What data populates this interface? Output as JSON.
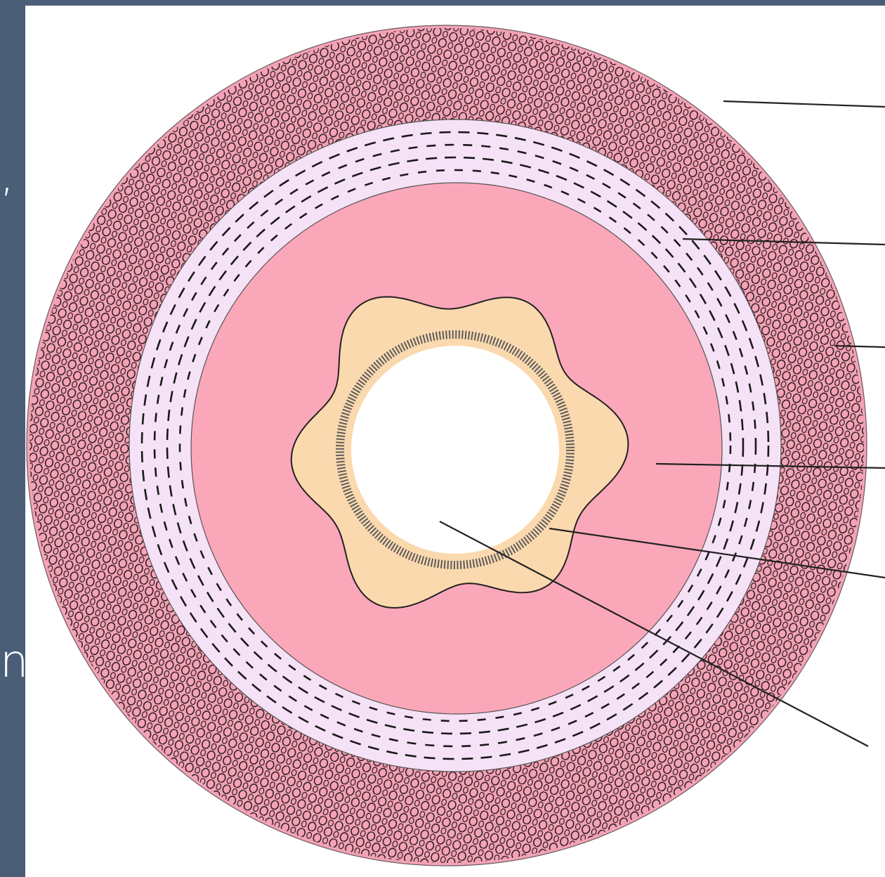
{
  "colors": {
    "slide_background": "#4b5e78",
    "canvas": "#ffffff",
    "outer_muscle": "#f4a3b7",
    "outer_muscle_cells": "#2a1a1e",
    "submucosa_ring": "#f6e2f6",
    "submucosa_dashes": "#1a1a1a",
    "mucosa_layer": "#fba7ba",
    "epithelium": "#fbd9ae",
    "villi": "#5c5c5c",
    "lumen": "#ffffff",
    "pointer_lines": "#222222"
  },
  "slide_text_fragments": [
    ",",
    "n"
  ],
  "icons": [
    "outer-muscle-pattern",
    "submucosa-dashes-pattern",
    "epithelium-villi-pattern"
  ],
  "diagram": {
    "labels": [],
    "pointer_count": 6
  }
}
